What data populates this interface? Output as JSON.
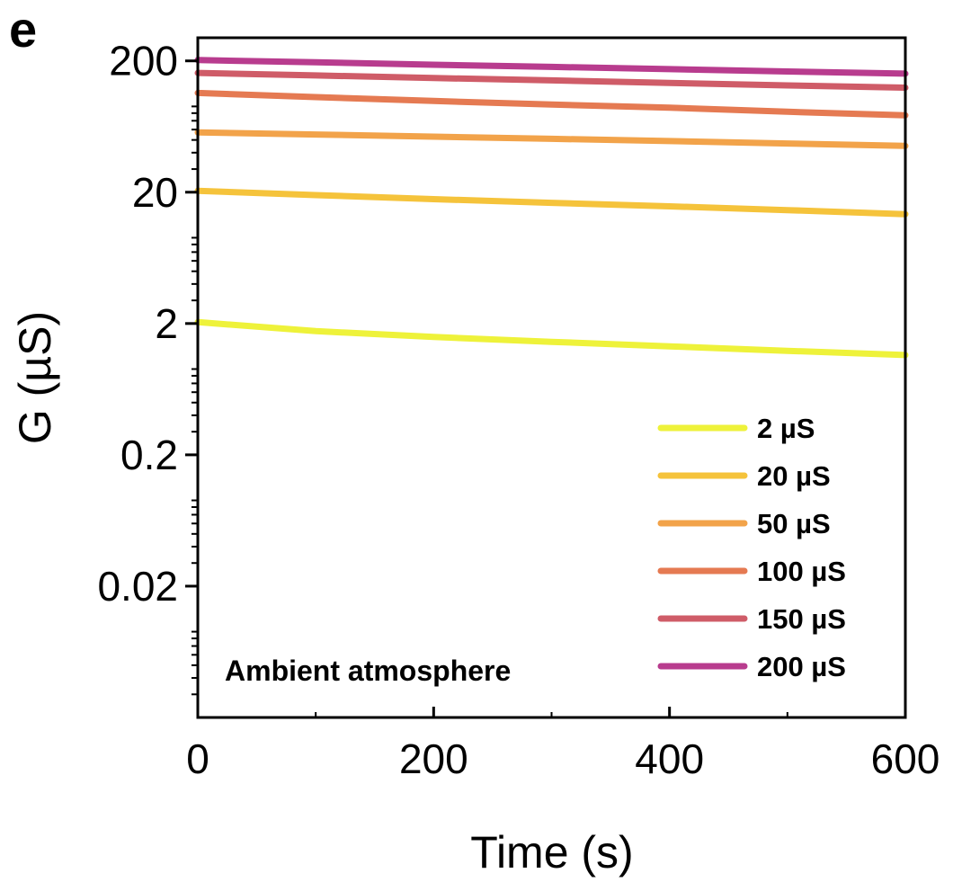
{
  "panel_label": "e",
  "chart_data": {
    "type": "line",
    "xlabel": "Time (s)",
    "ylabel": "G (µS)",
    "xlim": [
      0,
      600
    ],
    "ylim": [
      0.002,
      300
    ],
    "yscale": "log",
    "x_ticks": [
      {
        "value": 0,
        "label": "0"
      },
      {
        "value": 200,
        "label": "200"
      },
      {
        "value": 400,
        "label": "400"
      },
      {
        "value": 600,
        "label": "600"
      }
    ],
    "y_ticks": [
      {
        "value": 0.02,
        "label": "0.02"
      },
      {
        "value": 0.2,
        "label": "0.2"
      },
      {
        "value": 2,
        "label": "2"
      },
      {
        "value": 20,
        "label": "20"
      },
      {
        "value": 200,
        "label": "200"
      }
    ],
    "annotation": "Ambient atmosphere",
    "legend_position": "bottom-right",
    "series": [
      {
        "name": "2 µS",
        "color": "#eef23a",
        "x": [
          0,
          100,
          200,
          300,
          400,
          500,
          600
        ],
        "y": [
          2.05,
          1.75,
          1.58,
          1.45,
          1.34,
          1.24,
          1.15
        ]
      },
      {
        "name": "20 µS",
        "color": "#f5c33b",
        "x": [
          0,
          100,
          200,
          300,
          400,
          500,
          600
        ],
        "y": [
          20.5,
          19.0,
          17.7,
          16.6,
          15.6,
          14.6,
          13.6
        ]
      },
      {
        "name": "50 µS",
        "color": "#f2a34a",
        "x": [
          0,
          100,
          200,
          300,
          400,
          500,
          600
        ],
        "y": [
          57,
          55,
          53,
          51,
          49,
          47,
          45
        ]
      },
      {
        "name": "100 µS",
        "color": "#e57a52",
        "x": [
          0,
          100,
          200,
          300,
          400,
          500,
          600
        ],
        "y": [
          114,
          106,
          99,
          93,
          88,
          82,
          77
        ]
      },
      {
        "name": "150 µS",
        "color": "#cf5c68",
        "x": [
          0,
          100,
          200,
          300,
          400,
          500,
          600
        ],
        "y": [
          162,
          155,
          148,
          142,
          136,
          130,
          125
        ]
      },
      {
        "name": "200 µS",
        "color": "#b83c8e",
        "x": [
          0,
          100,
          200,
          300,
          400,
          500,
          600
        ],
        "y": [
          203,
          195,
          187,
          180,
          173,
          166,
          160
        ]
      }
    ]
  }
}
